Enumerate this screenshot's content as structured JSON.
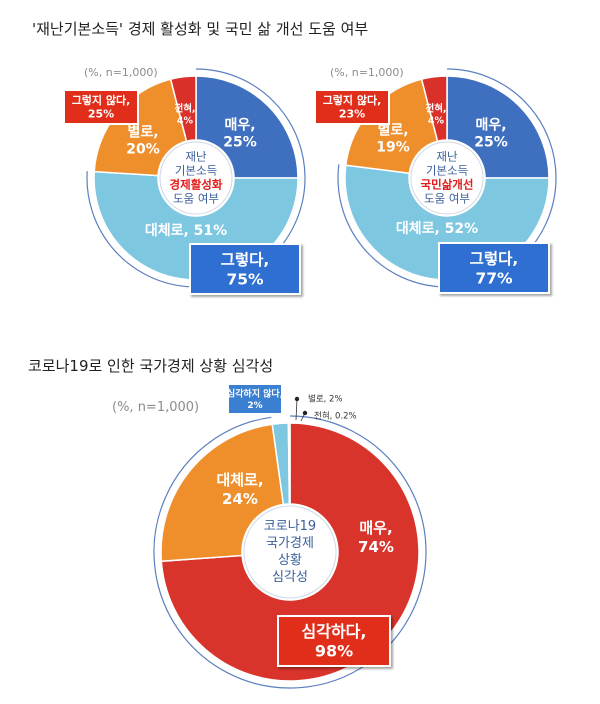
{
  "chart_data": [
    {
      "type": "pie",
      "title": "'재난기본소득' 경제 활성화 및 국민 삶 개선 도움 여부",
      "note": "(%, n=1,000)",
      "center_lines": [
        "재난",
        "기본소득",
        "경제활성화",
        "도움 여부"
      ],
      "slices": [
        {
          "name": "매우,",
          "value": 25,
          "label": "25%",
          "color": "#3f6fbf"
        },
        {
          "name": "대체로,",
          "value": 51,
          "label": "51%",
          "color": "#7ec7e1"
        },
        {
          "name": "별로,",
          "value": 20,
          "label": "20%",
          "color": "#ef8f2c"
        },
        {
          "name": "전혀,",
          "value": 4,
          "label": "4%",
          "color": "#d9302a"
        }
      ],
      "groups": [
        {
          "name": "그렇다,",
          "value": 75,
          "label": "75%",
          "color": "#2e6fd1"
        },
        {
          "name": "그렇지 않다,",
          "value": 25,
          "label": "25%",
          "color": "#e02e1b"
        }
      ]
    },
    {
      "type": "pie",
      "note": "(%, n=1,000)",
      "center_lines": [
        "재난",
        "기본소득",
        "국민삶개선",
        "도움 여부"
      ],
      "slices": [
        {
          "name": "매우,",
          "value": 25,
          "label": "25%",
          "color": "#3f6fbf"
        },
        {
          "name": "대체로,",
          "value": 52,
          "label": "52%",
          "color": "#7ec7e1"
        },
        {
          "name": "별로,",
          "value": 19,
          "label": "19%",
          "color": "#ef8f2c"
        },
        {
          "name": "전혀,",
          "value": 4,
          "label": "4%",
          "color": "#d9302a"
        }
      ],
      "groups": [
        {
          "name": "그렇다,",
          "value": 77,
          "label": "77%",
          "color": "#2e6fd1"
        },
        {
          "name": "그렇지 않다,",
          "value": 23,
          "label": "23%",
          "color": "#e02e1b"
        }
      ]
    },
    {
      "type": "pie",
      "title": "코로나19로 인한 국가경제 상황 심각성",
      "note": "(%, n=1,000)",
      "center_lines": [
        "코로나19",
        "국가경제",
        "상황",
        "심각성"
      ],
      "slices": [
        {
          "name": "매우,",
          "value": 74,
          "label": "74%",
          "color": "#d9342c"
        },
        {
          "name": "대체로,",
          "value": 24,
          "label": "24%",
          "color": "#ef8f2c"
        },
        {
          "name": "별로,",
          "value": 2,
          "label": "2%",
          "color": "#7ec7e1"
        },
        {
          "name": "전혀,",
          "value": 0.2,
          "label": "0.2%",
          "color": "#1f4fa8"
        }
      ],
      "groups": [
        {
          "name": "심각하다,",
          "value": 98,
          "label": "98%",
          "color": "#e02e1b"
        },
        {
          "name": "심각하지 않다,",
          "value": 2,
          "label": "2%",
          "color": "#3a7fd0"
        }
      ]
    }
  ]
}
